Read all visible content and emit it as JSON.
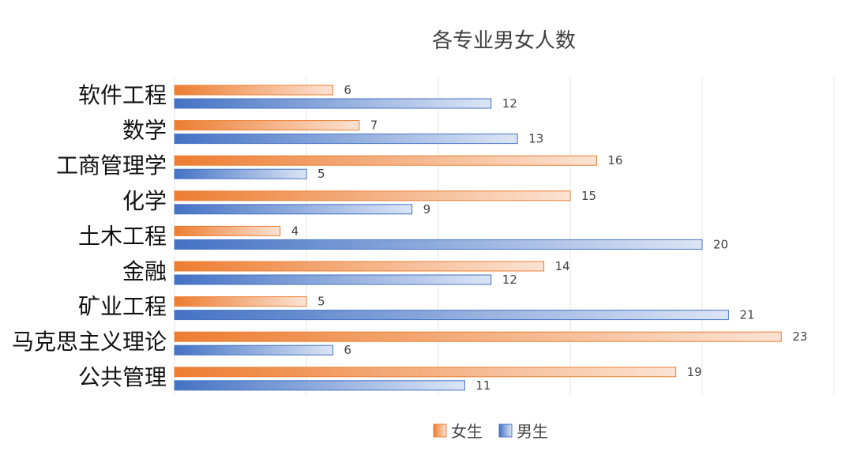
{
  "chart_data": {
    "type": "bar",
    "orientation": "horizontal",
    "title": "各专业男女人数",
    "categories": [
      "软件工程",
      "数学",
      "工商管理学",
      "化学",
      "土木工程",
      "金融",
      "矿业工程",
      "马克思主义理论",
      "公共管理"
    ],
    "series": [
      {
        "name": "女生",
        "values": [
          6,
          7,
          16,
          15,
          4,
          14,
          5,
          23,
          19
        ],
        "color": "#ED7D31"
      },
      {
        "name": "男生",
        "values": [
          12,
          13,
          5,
          9,
          20,
          12,
          21,
          6,
          11
        ],
        "color": "#4472C4"
      }
    ],
    "xlim": [
      0,
      25
    ],
    "gridlines": true,
    "legend": "bottom",
    "data_labels": true
  }
}
